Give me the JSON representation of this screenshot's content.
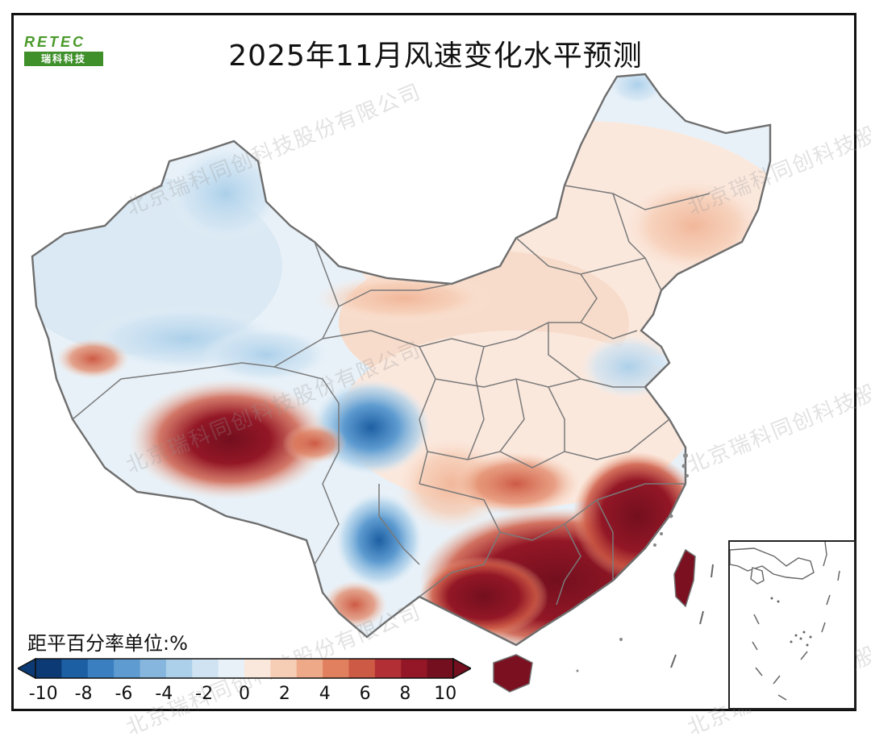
{
  "title": "2025年11月风速变化水平预测",
  "logo": {
    "top": "RETEC",
    "bottom": "瑞科科技"
  },
  "legend": {
    "unit_label": "距平百分率单位:%",
    "ticks": [
      "-10",
      "-8",
      "-6",
      "-4",
      "-2",
      "0",
      "2",
      "4",
      "6",
      "8",
      "10"
    ],
    "colors": [
      "#0b3a74",
      "#1d5fa3",
      "#3a7fbf",
      "#5d9bd0",
      "#86b6de",
      "#acd0ea",
      "#cfe3f2",
      "#e8f1f8",
      "#fbe8dd",
      "#f6cdb5",
      "#eeaa88",
      "#e0805e",
      "#cd5a45",
      "#b23035",
      "#931726",
      "#730f1e"
    ]
  },
  "watermark": "北京瑞科同创科技股份有限公司",
  "colors": {
    "border": "#6e6e6e",
    "deep_red": "#8b1020",
    "red": "#d0614b",
    "light_red": "#f6cdb5",
    "pale": "#fbe8dd",
    "pale_blue": "#e1edf6",
    "blue": "#6fa7d6",
    "deep_blue": "#1d5fa3"
  }
}
